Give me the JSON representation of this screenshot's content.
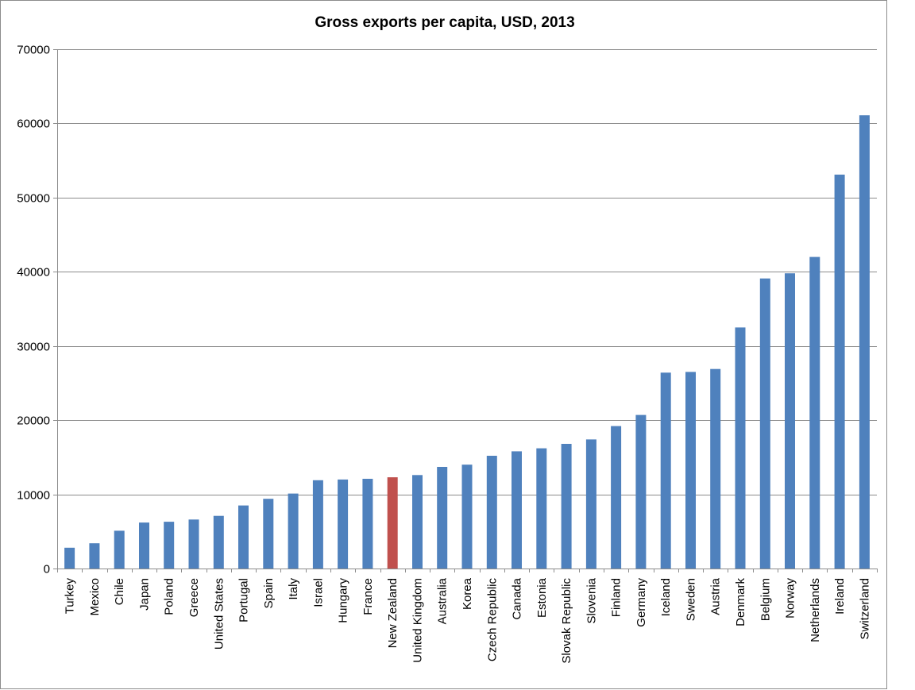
{
  "chart_data": {
    "type": "bar",
    "title": "Gross exports per capita, USD, 2013",
    "xlabel": "",
    "ylabel": "",
    "ylim": [
      0,
      70000
    ],
    "yticks": [
      0,
      10000,
      20000,
      30000,
      40000,
      50000,
      60000,
      70000
    ],
    "grid": true,
    "legend": "none",
    "bar_color": "#4f81bd",
    "highlight_color": "#c0504d",
    "highlight_category": "New Zealand",
    "categories": [
      "Turkey",
      "Mexico",
      "Chile",
      "Japan",
      "Poland",
      "Greece",
      "United States",
      "Portugal",
      "Spain",
      "Italy",
      "Israel",
      "Hungary",
      "France",
      "New Zealand",
      "United Kingdom",
      "Australia",
      "Korea",
      "Czech Republic",
      "Canada",
      "Estonia",
      "Slovak Republic",
      "Slovenia",
      "Finland",
      "Germany",
      "Iceland",
      "Sweden",
      "Austria",
      "Denmark",
      "Belgium",
      "Norway",
      "Netherlands",
      "Ireland",
      "Switzerland"
    ],
    "values": [
      2800,
      3400,
      5100,
      6200,
      6300,
      6600,
      7100,
      8500,
      9400,
      10100,
      11900,
      12000,
      12100,
      12300,
      12600,
      13700,
      14000,
      15200,
      15800,
      16200,
      16800,
      17400,
      19200,
      20700,
      26400,
      26500,
      26900,
      32500,
      39100,
      39800,
      42000,
      53100,
      61100
    ]
  }
}
